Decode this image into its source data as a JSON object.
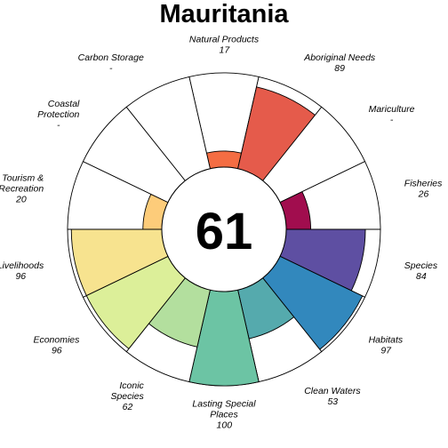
{
  "chart_data": {
    "type": "flower",
    "title": "Mauritania",
    "center_score": "61",
    "ylim": [
      0,
      100
    ],
    "colors": {
      "petal_outline": "#000000",
      "background": "#ffffff"
    },
    "goals": [
      {
        "name": "Natural Products",
        "label_lines": [
          "Natural Products"
        ],
        "score_text": "17",
        "value": 17,
        "color": "#f46d43"
      },
      {
        "name": "Aboriginal Needs",
        "label_lines": [
          "Aboriginal Needs"
        ],
        "score_text": "89",
        "value": 89,
        "color": "#e55b4b"
      },
      {
        "name": "Mariculture",
        "label_lines": [
          "Mariculture"
        ],
        "score_text": "-",
        "value": null,
        "color": "#d53e4f"
      },
      {
        "name": "Fisheries",
        "label_lines": [
          "Fisheries"
        ],
        "score_text": "26",
        "value": 26,
        "color": "#a10d4e"
      },
      {
        "name": "Species",
        "label_lines": [
          "Species"
        ],
        "score_text": "84",
        "value": 84,
        "color": "#5e4fa2"
      },
      {
        "name": "Habitats",
        "label_lines": [
          "Habitats"
        ],
        "score_text": "97",
        "value": 97,
        "color": "#3288bd"
      },
      {
        "name": "Clean Waters",
        "label_lines": [
          "Clean Waters"
        ],
        "score_text": "53",
        "value": 53,
        "color": "#55aaad"
      },
      {
        "name": "Lasting Special Places",
        "label_lines": [
          "Lasting Special",
          "Places"
        ],
        "score_text": "100",
        "value": 100,
        "color": "#6cc4a4"
      },
      {
        "name": "Iconic Species",
        "label_lines": [
          "Iconic",
          "Species"
        ],
        "score_text": "62",
        "value": 62,
        "color": "#b3df9e"
      },
      {
        "name": "Economies",
        "label_lines": [
          "Economies"
        ],
        "score_text": "96",
        "value": 96,
        "color": "#dcef99"
      },
      {
        "name": "Livelihoods",
        "label_lines": [
          "Livelihoods"
        ],
        "score_text": "96",
        "value": 96,
        "color": "#f7e38f"
      },
      {
        "name": "Tourism & Recreation",
        "label_lines": [
          "Tourism &",
          "Recreation"
        ],
        "score_text": "20",
        "value": 20,
        "color": "#fdcc7a"
      },
      {
        "name": "Coastal Protection",
        "label_lines": [
          "Coastal",
          "Protection"
        ],
        "score_text": "-",
        "value": null,
        "color": "#fdae61"
      },
      {
        "name": "Carbon Storage",
        "label_lines": [
          "Carbon Storage"
        ],
        "score_text": "-",
        "value": null,
        "color": "#f98e52"
      }
    ]
  }
}
